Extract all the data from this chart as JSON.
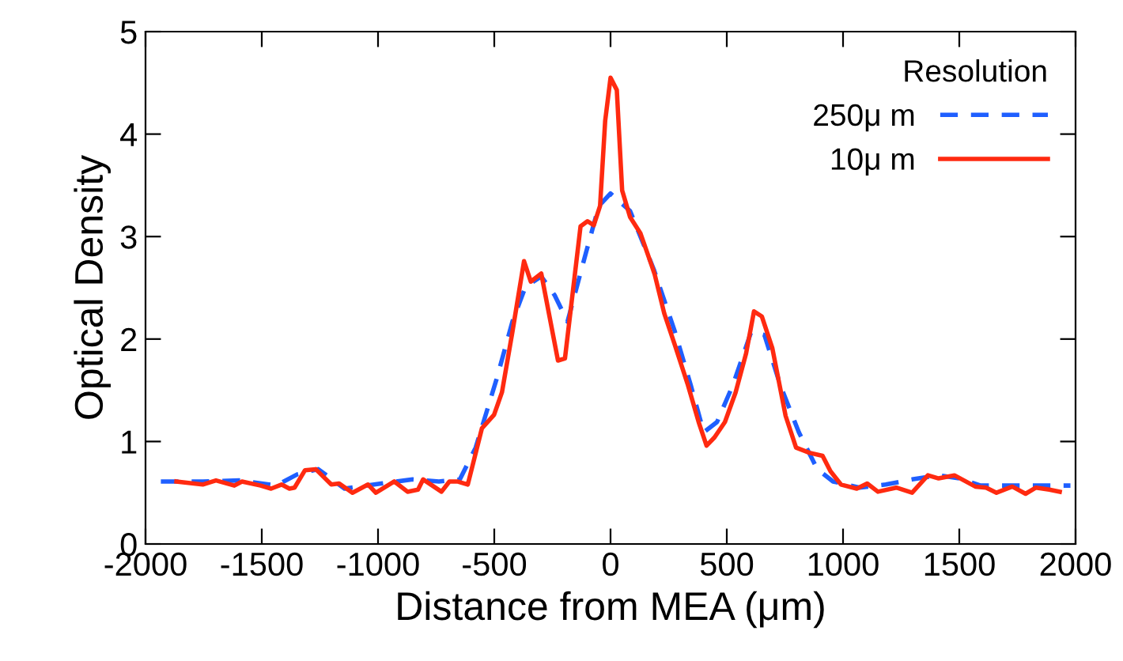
{
  "chart_data": {
    "type": "line",
    "xlabel": "Distance from MEA (μm)",
    "ylabel": "Optical Density",
    "legend_title": "Resolution",
    "legend": "top right",
    "grid": false,
    "xlim": [
      -2000,
      2000
    ],
    "ylim": [
      0,
      5
    ],
    "xticks": [
      {
        "value": -2000,
        "label": "-2000"
      },
      {
        "value": -1500,
        "label": "-1500"
      },
      {
        "value": -1000,
        "label": "-1000"
      },
      {
        "value": -500,
        "label": "-500"
      },
      0,
      500,
      1000,
      1500,
      2000
    ],
    "yticks": [
      0,
      1,
      2,
      3,
      4,
      5
    ],
    "series": [
      {
        "name": "250μ m",
        "color": "#1f5fff",
        "line_style": "dashed",
        "x": [
          -1934,
          -1754,
          -1596,
          -1438,
          -1347,
          -1257,
          -1144,
          -986,
          -851,
          -738,
          -648,
          -580,
          -490,
          -422,
          -366,
          -298,
          -241,
          -185,
          -106,
          -50,
          0,
          84,
          186,
          277,
          345,
          401,
          458,
          526,
          605,
          662,
          730,
          810,
          889,
          957,
          1071,
          1184,
          1297,
          1411,
          1501,
          1592,
          1705,
          1819,
          1978
        ],
        "values": [
          0.61,
          0.61,
          0.62,
          0.57,
          0.68,
          0.73,
          0.54,
          0.59,
          0.63,
          0.61,
          0.63,
          0.94,
          1.61,
          2.17,
          2.51,
          2.61,
          2.43,
          2.17,
          2.84,
          3.3,
          3.42,
          3.25,
          2.68,
          2.07,
          1.55,
          1.09,
          1.19,
          1.55,
          2.07,
          2.04,
          1.55,
          1.09,
          0.73,
          0.61,
          0.55,
          0.58,
          0.63,
          0.67,
          0.64,
          0.57,
          0.57,
          0.57,
          0.57
        ]
      },
      {
        "name": "10μ m",
        "color": "#ff2a10",
        "line_style": "solid",
        "x": [
          -1867,
          -1754,
          -1697,
          -1618,
          -1585,
          -1505,
          -1460,
          -1415,
          -1381,
          -1359,
          -1314,
          -1268,
          -1201,
          -1167,
          -1110,
          -1043,
          -1009,
          -930,
          -873,
          -828,
          -806,
          -727,
          -693,
          -659,
          -614,
          -553,
          -501,
          -467,
          -422,
          -372,
          -343,
          -298,
          -226,
          -196,
          -129,
          -99,
          -72,
          -45,
          -23,
          0,
          27,
          50,
          84,
          129,
          175,
          190,
          231,
          277,
          333,
          379,
          413,
          447,
          492,
          538,
          583,
          617,
          651,
          696,
          753,
          798,
          855,
          912,
          946,
          991,
          1059,
          1104,
          1150,
          1229,
          1297,
          1365,
          1411,
          1479,
          1569,
          1615,
          1660,
          1728,
          1785,
          1830,
          1887,
          1932
        ],
        "values": [
          0.61,
          0.58,
          0.62,
          0.57,
          0.61,
          0.57,
          0.54,
          0.58,
          0.54,
          0.55,
          0.72,
          0.73,
          0.58,
          0.59,
          0.5,
          0.58,
          0.5,
          0.61,
          0.51,
          0.53,
          0.63,
          0.51,
          0.61,
          0.61,
          0.58,
          1.13,
          1.26,
          1.48,
          2.07,
          2.76,
          2.56,
          2.64,
          1.79,
          1.81,
          3.1,
          3.15,
          3.11,
          3.3,
          4.13,
          4.55,
          4.43,
          3.45,
          3.19,
          3.03,
          2.73,
          2.63,
          2.25,
          1.94,
          1.55,
          1.19,
          0.96,
          1.04,
          1.19,
          1.48,
          1.86,
          2.27,
          2.22,
          1.91,
          1.25,
          0.94,
          0.89,
          0.86,
          0.71,
          0.58,
          0.54,
          0.59,
          0.51,
          0.55,
          0.5,
          0.67,
          0.64,
          0.67,
          0.56,
          0.55,
          0.5,
          0.56,
          0.49,
          0.55,
          0.53,
          0.51
        ]
      }
    ]
  }
}
